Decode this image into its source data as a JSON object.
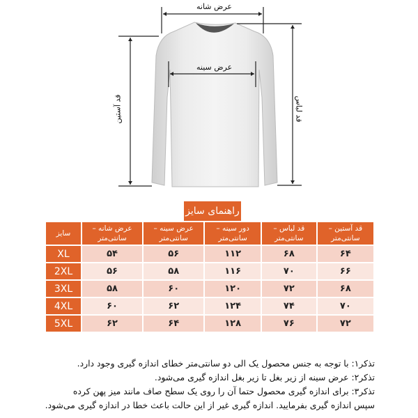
{
  "diagram": {
    "shoulder_width_label": "عرض شانه",
    "chest_width_label": "عرض سینه",
    "sleeve_length_label": "قد آستین",
    "garment_length_label": "قد لباس"
  },
  "size_guide": {
    "title": "راهنمای سایز",
    "headers": {
      "size": "سایز",
      "shoulder_width": "عرض شانه – سانتی‌متر",
      "chest_width": "عرض سینه – سانتی‌متر",
      "chest_circumference": "دور سینه – سانتی‌متر",
      "garment_length": "قد لباس – سانتی‌متر",
      "sleeve_length": "قد آستین – سانتی‌متر"
    },
    "rows": [
      {
        "size": "XL",
        "shoulder_width": "۵۴",
        "chest_width": "۵۶",
        "chest_circumference": "۱۱۲",
        "garment_length": "۶۸",
        "sleeve_length": "۶۴"
      },
      {
        "size": "2XL",
        "shoulder_width": "۵۶",
        "chest_width": "۵۸",
        "chest_circumference": "۱۱۶",
        "garment_length": "۷۰",
        "sleeve_length": "۶۶"
      },
      {
        "size": "3XL",
        "shoulder_width": "۵۸",
        "chest_width": "۶۰",
        "chest_circumference": "۱۲۰",
        "garment_length": "۷۲",
        "sleeve_length": "۶۸"
      },
      {
        "size": "4XL",
        "shoulder_width": "۶۰",
        "chest_width": "۶۲",
        "chest_circumference": "۱۲۴",
        "garment_length": "۷۴",
        "sleeve_length": "۷۰"
      },
      {
        "size": "5XL",
        "shoulder_width": "۶۲",
        "chest_width": "۶۴",
        "chest_circumference": "۱۲۸",
        "garment_length": "۷۶",
        "sleeve_length": "۷۲"
      }
    ],
    "accent_color": "#e0632a"
  },
  "notes": [
    "تذکر۱: با توجه به جنس محصول یک الی دو سانتی‌متر خطای اندازه گیری وجود دارد.",
    "تذکر۲: عرض سینه از زیر بغل تا زیر بغل اندازه گیری می‌شود.",
    "تذکر۳: برای اندازه گیری محصول حتما آن را روی یک سطح صاف مانند میز پهن کرده",
    "سپس اندازه گیری بفرمایید. اندازه گیری غیر از این حالت باعث خطا در اندازه گیری می‌شود."
  ]
}
